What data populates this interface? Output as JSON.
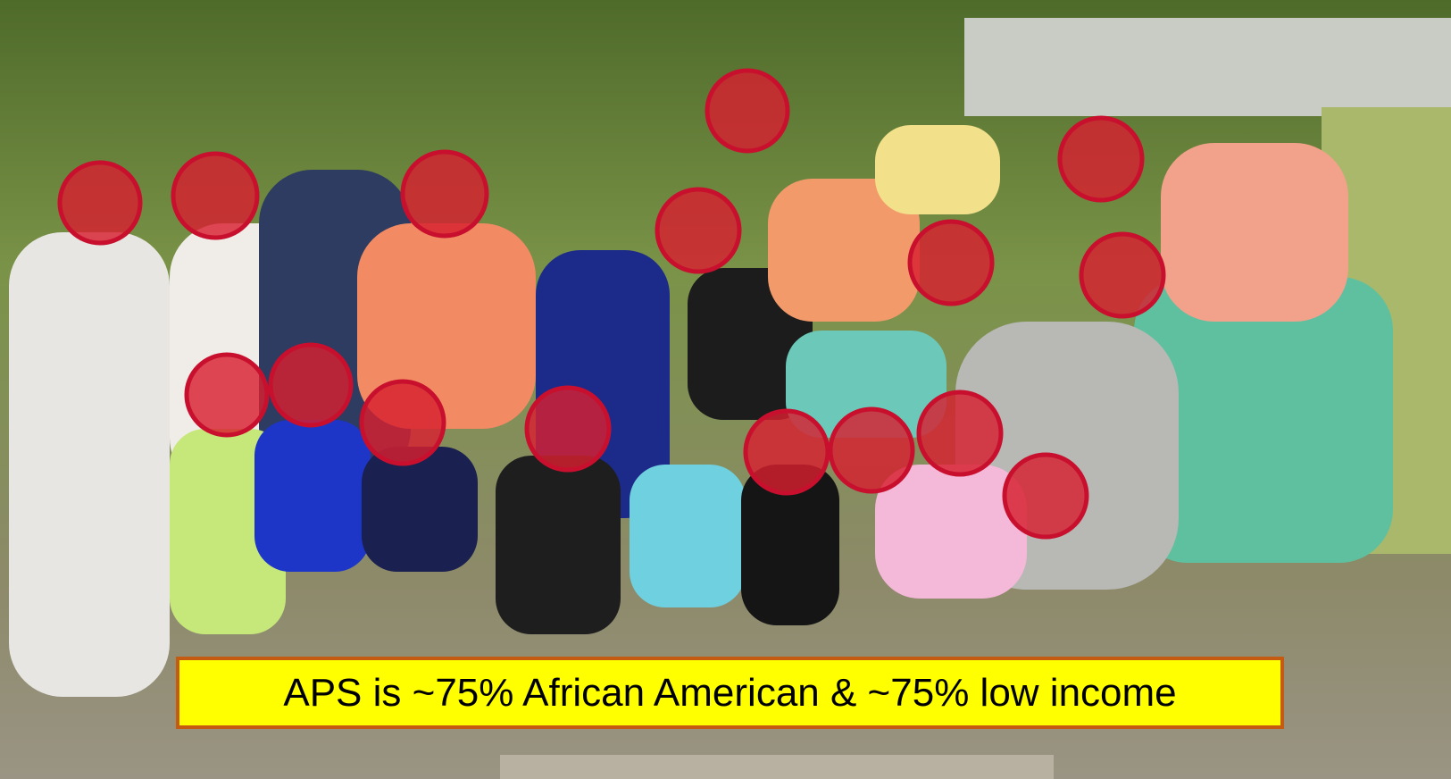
{
  "caption": "APS is ~75% African American & ~75% low income"
}
